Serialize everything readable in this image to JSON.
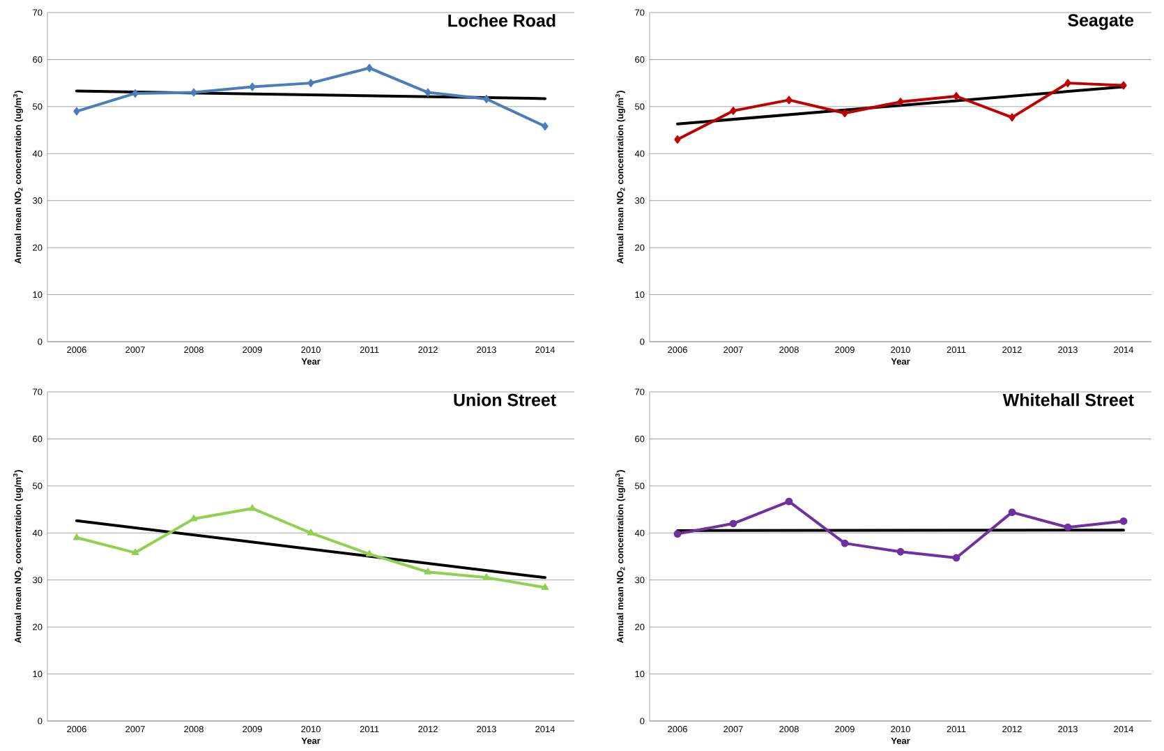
{
  "chart_data": [
    {
      "type": "line",
      "title": "Lochee Road",
      "xlabel": "Year",
      "ylabel": "Annual mean NO$_{2}$ concentration (ug/m$^{3}$)",
      "x": [
        2006,
        2007,
        2008,
        2009,
        2010,
        2011,
        2012,
        2013,
        2014
      ],
      "xlim": [
        2005.5,
        2014.5
      ],
      "xticks": [
        2006,
        2007,
        2008,
        2009,
        2010,
        2011,
        2012,
        2013,
        2014
      ],
      "ylim": [
        0,
        70
      ],
      "yticks": [
        0,
        10,
        20,
        30,
        40,
        50,
        60,
        70
      ],
      "grid": "y",
      "series": [
        {
          "color": "#4a7ebb",
          "marker": "diamond",
          "values": [
            49,
            52.8,
            53,
            54.2,
            55,
            58.2,
            53,
            51.6,
            45.8
          ]
        },
        {
          "type": "line",
          "color": "#000000",
          "marker": "none",
          "values": [
            53.3,
            null,
            null,
            null,
            null,
            null,
            null,
            null,
            51.7
          ]
        }
      ]
    },
    {
      "type": "line",
      "title": "Seagate",
      "xlabel": "Year",
      "ylabel": "Annual mean NO$_{2}$ concentration (ug/m$^{3}$)",
      "x": [
        2006,
        2007,
        2008,
        2009,
        2010,
        2011,
        2012,
        2013,
        2014
      ],
      "xlim": [
        2005.5,
        2014.5
      ],
      "xticks": [
        2006,
        2007,
        2008,
        2009,
        2010,
        2011,
        2012,
        2013,
        2014
      ],
      "ylim": [
        0,
        70
      ],
      "yticks": [
        0,
        10,
        20,
        30,
        40,
        50,
        60,
        70
      ],
      "grid": "y",
      "series": [
        {
          "color": "#c00000",
          "marker": "diamond",
          "values": [
            43,
            49.1,
            51.4,
            48.6,
            51,
            52.2,
            47.7,
            55,
            54.5
          ]
        },
        {
          "type": "line",
          "color": "#000000",
          "marker": "none",
          "values": [
            46.3,
            null,
            null,
            null,
            null,
            null,
            null,
            null,
            54.2
          ]
        }
      ]
    },
    {
      "type": "line",
      "title": "Union Street",
      "xlabel": "Year",
      "ylabel": "Annual mean NO$_{2}$ concentration (ug/m$^{3}$)",
      "x": [
        2006,
        2007,
        2008,
        2009,
        2010,
        2011,
        2012,
        2013,
        2014
      ],
      "xlim": [
        2005.5,
        2014.5
      ],
      "xticks": [
        2006,
        2007,
        2008,
        2009,
        2010,
        2011,
        2012,
        2013,
        2014
      ],
      "ylim": [
        0,
        70
      ],
      "yticks": [
        0,
        10,
        20,
        30,
        40,
        50,
        60,
        70
      ],
      "grid": "y",
      "series": [
        {
          "color": "#92d050",
          "marker": "triangle",
          "values": [
            39,
            35.8,
            43,
            45.2,
            40,
            35.5,
            31.7,
            30.5,
            28.4
          ]
        },
        {
          "type": "line",
          "color": "#000000",
          "marker": "none",
          "values": [
            42.6,
            null,
            null,
            null,
            null,
            null,
            null,
            null,
            30.5
          ]
        }
      ]
    },
    {
      "type": "line",
      "title": "Whitehall Street",
      "xlabel": "Year",
      "ylabel": "Annual mean NO$_{2}$ concentration (ug/m$^{3}$)",
      "x": [
        2006,
        2007,
        2008,
        2009,
        2010,
        2011,
        2012,
        2013,
        2014
      ],
      "xlim": [
        2005.5,
        2014.5
      ],
      "xticks": [
        2006,
        2007,
        2008,
        2009,
        2010,
        2011,
        2012,
        2013,
        2014
      ],
      "ylim": [
        0,
        70
      ],
      "yticks": [
        0,
        10,
        20,
        30,
        40,
        50,
        60,
        70
      ],
      "grid": "y",
      "series": [
        {
          "color": "#7030a0",
          "marker": "circle",
          "values": [
            39.8,
            42,
            46.7,
            37.8,
            36,
            34.7,
            44.4,
            41.2,
            42.5
          ]
        },
        {
          "type": "line",
          "color": "#000000",
          "marker": "none",
          "values": [
            40.5,
            null,
            null,
            null,
            null,
            null,
            null,
            null,
            40.6
          ]
        }
      ]
    }
  ]
}
